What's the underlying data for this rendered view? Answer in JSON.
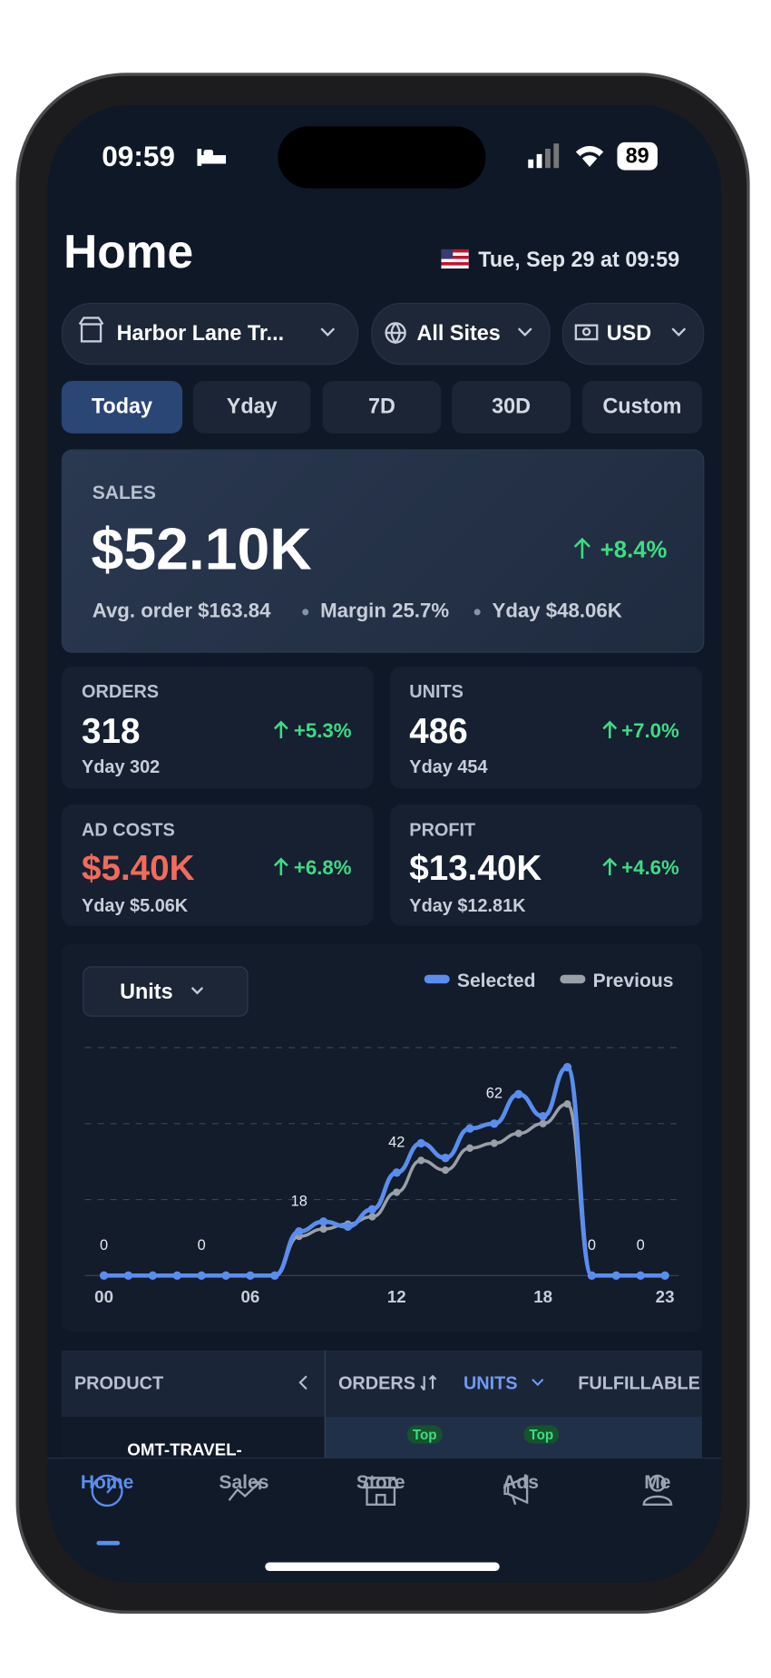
{
  "status_bar": {
    "time": "09:59",
    "battery": "89"
  },
  "header": {
    "title": "Home",
    "date": "Tue, Sep 29 at 09:59"
  },
  "filters": [
    "Harbor Lane Tr...",
    "All Sites",
    "USD"
  ],
  "tabs": [
    "Today",
    "Yday",
    "7D",
    "30D",
    "Custom"
  ],
  "active_tab": "Today",
  "sales": {
    "label": "SALES",
    "value": "$52.10K",
    "change": "+8.4%",
    "details": [
      "Avg. order $163.84",
      "Margin 25.7%",
      "Yday $48.06K"
    ]
  },
  "metrics": [
    {
      "label": "ORDERS",
      "value": "318",
      "change": "+5.3%",
      "previous": "Yday 302"
    },
    {
      "label": "UNITS",
      "value": "486",
      "change": "+7.0%",
      "previous": "Yday 454"
    },
    {
      "label": "AD COSTS",
      "value": "$5.40K",
      "change": "+6.8%",
      "previous": "Yday $5.06K"
    },
    {
      "label": "PROFIT",
      "value": "$13.40K",
      "change": "+4.6%",
      "previous": "Yday $12.81K"
    }
  ],
  "chart_selector": "Units",
  "chart_data": {
    "type": "line",
    "categories": [
      "00",
      null,
      null,
      null,
      null,
      null,
      "06",
      null,
      null,
      null,
      null,
      null,
      "12",
      null,
      null,
      null,
      null,
      null,
      "18",
      null,
      null,
      null,
      null,
      "23"
    ],
    "series": [
      {
        "name": "Selected",
        "color": "#5b8def",
        "values": [
          0,
          0,
          0,
          0,
          0,
          0,
          0,
          0,
          18,
          22,
          20,
          27,
          42,
          54,
          48,
          60,
          62,
          74,
          65,
          85,
          0,
          0,
          0,
          0
        ],
        "value_labels": [
          "0",
          null,
          null,
          null,
          "0",
          null,
          null,
          null,
          "18",
          null,
          null,
          null,
          "42",
          null,
          null,
          null,
          "62",
          null,
          null,
          null,
          "0",
          null,
          "0",
          null
        ]
      },
      {
        "name": "Previous",
        "color": "#9aa0a8",
        "values": [
          0,
          0,
          0,
          0,
          0,
          0,
          0,
          0,
          16,
          19,
          21,
          24,
          34,
          47,
          43,
          52,
          54,
          58,
          62,
          70,
          0,
          0,
          0,
          0
        ]
      }
    ],
    "ylim": [
      0,
      93
    ],
    "grid": true,
    "legend": "top-right"
  },
  "table": {
    "columns": [
      "PRODUCT",
      "ORDERS",
      "UNITS",
      "FULFILLABLE"
    ],
    "badges": [
      "Top",
      "Top"
    ],
    "first_row": "OMT-TRAVEL-"
  },
  "nav": [
    "Home",
    "Sales",
    "Store",
    "Ads",
    "Me"
  ],
  "active_nav": "Home"
}
